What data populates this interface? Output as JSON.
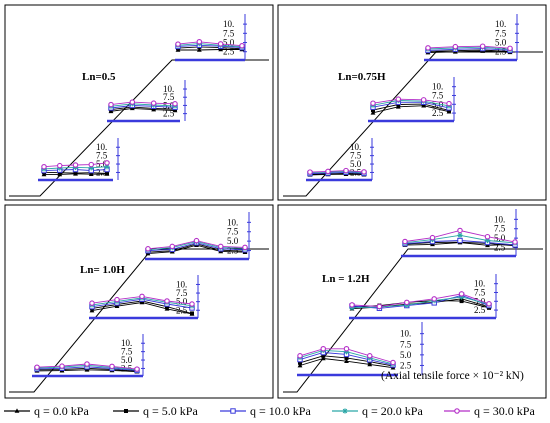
{
  "axis_note": "(Axial tensile force × 10⁻² kN)",
  "tick_labels": [
    "10.",
    "7.5",
    "5.0",
    "2.5"
  ],
  "chart_data": {
    "type": "line",
    "ylim": [
      0,
      10
    ],
    "series": [
      {
        "name": "q = 0.0 kPa",
        "color": "#000000",
        "marker": "triangle"
      },
      {
        "name": "q = 5.0 kPa",
        "color": "#000000",
        "marker": "square"
      },
      {
        "name": "q = 10.0 kPa",
        "color": "#3a3adc",
        "marker": "open-square"
      },
      {
        "name": "q = 20.0 kPa",
        "color": "#2aa6a6",
        "marker": "star"
      },
      {
        "name": "q = 30.0 kPa",
        "color": "#b42fc8",
        "marker": "open-circle"
      }
    ],
    "panels": [
      {
        "label": "Ln=0.5",
        "layers": [
          {
            "values": [
              [
                1.2,
                1.2,
                1.5,
                1.3,
                1.4
              ],
              [
                2.2,
                2.0,
                1.8,
                2.0,
                1.7
              ],
              [
                3.0,
                3.2,
                3.5,
                3.0,
                3.5
              ],
              [
                3.8,
                4.2,
                4.5,
                4.3,
                4.8
              ],
              [
                4.8,
                5.3,
                5.6,
                5.8,
                6.6
              ]
            ]
          },
          {
            "values": [
              [
                3.2,
                4.6,
                4.0,
                3.6
              ],
              [
                4.0,
                5.2,
                4.6,
                4.2
              ],
              [
                4.8,
                6.0,
                5.6,
                5.1
              ],
              [
                5.6,
                6.8,
                6.2,
                5.8
              ],
              [
                6.4,
                7.6,
                7.1,
                6.8
              ]
            ]
          },
          {
            "values": [
              [
                3.0,
                3.0,
                3.2,
                3.2
              ],
              [
                3.8,
                4.3,
                4.0,
                3.5
              ],
              [
                4.5,
                5.0,
                4.6,
                4.0
              ],
              [
                5.0,
                5.7,
                5.0,
                4.4
              ],
              [
                5.5,
                6.5,
                5.6,
                4.8
              ]
            ]
          }
        ]
      },
      {
        "label": "Ln=0.75H",
        "layers": [
          {
            "values": [
              [
                1.0,
                1.2,
                1.3,
                1.1
              ],
              [
                1.3,
                1.5,
                1.7,
                1.5
              ],
              [
                1.6,
                1.8,
                2.2,
                1.7
              ],
              [
                2.0,
                2.3,
                2.6,
                2.1
              ],
              [
                2.3,
                2.6,
                3.0,
                2.4
              ]
            ]
          },
          {
            "values": [
              [
                2.3,
                5.0,
                5.5,
                2.8
              ],
              [
                3.5,
                6.0,
                6.2,
                3.4
              ],
              [
                4.8,
                7.0,
                7.0,
                4.5
              ],
              [
                5.7,
                7.8,
                7.5,
                5.4
              ],
              [
                6.6,
                8.4,
                8.1,
                6.4
              ]
            ]
          },
          {
            "values": [
              [
                1.9,
                2.2,
                2.5,
                2.0
              ],
              [
                2.4,
                2.7,
                3.0,
                2.3
              ],
              [
                2.8,
                3.3,
                3.6,
                2.8
              ],
              [
                3.4,
                3.9,
                4.2,
                3.2
              ],
              [
                3.9,
                4.4,
                4.6,
                3.7
              ]
            ]
          }
        ]
      },
      {
        "label": "Ln= 1.0H",
        "layers": [
          {
            "values": [
              [
                1.0,
                1.1,
                1.5,
                1.2,
                0.6
              ],
              [
                1.5,
                1.6,
                2.2,
                1.6,
                0.9
              ],
              [
                1.9,
                2.2,
                2.9,
                2.1,
                1.2
              ],
              [
                2.3,
                2.8,
                3.6,
                2.6,
                1.5
              ],
              [
                2.7,
                3.2,
                4.2,
                3.1,
                1.8
              ]
            ]
          },
          {
            "values": [
              [
                2.0,
                4.0,
                5.7,
                2.8,
                0.5
              ],
              [
                3.0,
                4.8,
                6.4,
                3.8,
                0.7
              ],
              [
                3.8,
                5.5,
                7.2,
                5.0,
                3.2
              ],
              [
                4.6,
                6.2,
                7.8,
                5.8,
                4.2
              ],
              [
                5.4,
                7.0,
                8.5,
                6.4,
                5.0
              ]
            ]
          },
          {
            "values": [
              [
                1.0,
                1.8,
                4.5,
                1.9,
                1.6
              ],
              [
                1.6,
                2.2,
                5.0,
                2.4,
                2.0
              ],
              [
                2.2,
                2.8,
                5.5,
                3.0,
                2.6
              ],
              [
                2.6,
                3.5,
                6.0,
                3.5,
                3.2
              ],
              [
                3.0,
                4.0,
                6.4,
                4.0,
                3.6
              ]
            ]
          }
        ]
      },
      {
        "label": "Ln = 1.2H",
        "layers": [
          {
            "values": [
              [
                2.4,
                5.0,
                4.0,
                2.8,
                1.6
              ],
              [
                3.4,
                6.0,
                5.2,
                3.8,
                2.2
              ],
              [
                4.6,
                7.2,
                6.5,
                4.5,
                2.6
              ],
              [
                5.4,
                8.0,
                7.5,
                5.2,
                3.0
              ],
              [
                6.0,
                8.6,
                8.6,
                6.0,
                3.5
              ]
            ]
          },
          {
            "values": [
              [
                2.8,
                3.5,
                4.8,
                5.6,
                7.2,
                3.6
              ],
              [
                3.5,
                4.2,
                5.6,
                6.4,
                6.2,
                3.2
              ],
              [
                4.0,
                3.0,
                4.2,
                5.4,
                8.8,
                4.2
              ],
              [
                3.2,
                3.6,
                4.4,
                6.4,
                8.0,
                4.8
              ],
              [
                4.5,
                3.8,
                5.6,
                7.2,
                9.4,
                5.0
              ]
            ]
          },
          {
            "values": [
              [
                3.3,
                3.6,
                4.4,
                3.2,
                3.6
              ],
              [
                3.7,
                4.4,
                4.5,
                4.0,
                3.0
              ],
              [
                3.9,
                4.8,
                5.2,
                4.4,
                3.4
              ],
              [
                4.3,
                5.6,
                7.4,
                5.2,
                4.2
              ],
              [
                4.8,
                6.4,
                9.4,
                6.8,
                4.6
              ]
            ]
          }
        ]
      }
    ]
  }
}
